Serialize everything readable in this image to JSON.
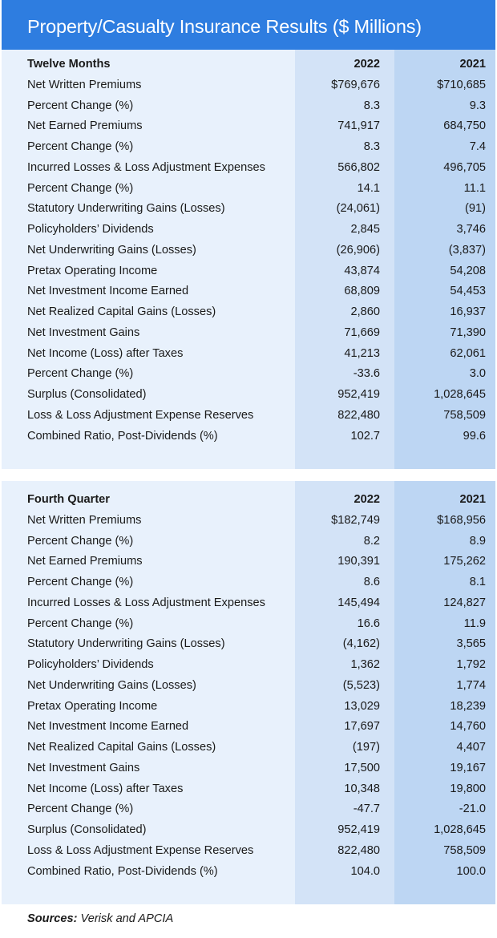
{
  "title": "Property/Casualty Insurance Results ($ Millions)",
  "tables": [
    {
      "heading": "Twelve Months",
      "col1": "2022",
      "col2": "2021",
      "rows": [
        [
          "Net Written Premiums",
          "$769,676",
          "$710,685"
        ],
        [
          "Percent Change (%)",
          "8.3",
          "9.3"
        ],
        [
          "Net Earned Premiums",
          "741,917",
          "684,750"
        ],
        [
          "Percent Change (%)",
          "8.3",
          "7.4"
        ],
        [
          "Incurred Losses & Loss Adjustment Expenses",
          "566,802",
          "496,705"
        ],
        [
          "Percent Change (%)",
          "14.1",
          "11.1"
        ],
        [
          "Statutory Underwriting Gains (Losses)",
          "(24,061)",
          "(91)"
        ],
        [
          "Policyholders’ Dividends",
          "2,845",
          "3,746"
        ],
        [
          "Net Underwriting Gains (Losses)",
          "(26,906)",
          "(3,837)"
        ],
        [
          "Pretax Operating Income",
          "43,874",
          "54,208"
        ],
        [
          "Net Investment Income Earned",
          "68,809",
          "54,453"
        ],
        [
          "Net Realized Capital Gains (Losses)",
          "2,860",
          "16,937"
        ],
        [
          "Net Investment Gains",
          "71,669",
          "71,390"
        ],
        [
          "Net Income (Loss) after Taxes",
          "41,213",
          "62,061"
        ],
        [
          "Percent Change (%)",
          "-33.6",
          "3.0"
        ],
        [
          "Surplus (Consolidated)",
          "952,419",
          "1,028,645"
        ],
        [
          "Loss & Loss Adjustment Expense Reserves",
          "822,480",
          "758,509"
        ],
        [
          "Combined Ratio, Post-Dividends (%)",
          "102.7",
          "99.6"
        ]
      ]
    },
    {
      "heading": "Fourth Quarter",
      "col1": "2022",
      "col2": "2021",
      "rows": [
        [
          "Net Written Premiums",
          "$182,749",
          "$168,956"
        ],
        [
          "Percent Change (%)",
          "8.2",
          "8.9"
        ],
        [
          "Net Earned Premiums",
          "190,391",
          "175,262"
        ],
        [
          "Percent Change (%)",
          "8.6",
          "8.1"
        ],
        [
          "Incurred Losses & Loss Adjustment Expenses",
          "145,494",
          "124,827"
        ],
        [
          "Percent Change (%)",
          "16.6",
          "11.9"
        ],
        [
          "Statutory Underwriting Gains (Losses)",
          "(4,162)",
          "3,565"
        ],
        [
          "Policyholders’ Dividends",
          "1,362",
          "1,792"
        ],
        [
          "Net Underwriting Gains (Losses)",
          "(5,523)",
          "1,774"
        ],
        [
          "Pretax Operating Income",
          "13,029",
          "18,239"
        ],
        [
          "Net Investment Income Earned",
          "17,697",
          "14,760"
        ],
        [
          "Net Realized Capital Gains (Losses)",
          "(197)",
          "4,407"
        ],
        [
          "Net Investment Gains",
          "17,500",
          "19,167"
        ],
        [
          "Net Income (Loss) after Taxes",
          "10,348",
          "19,800"
        ],
        [
          "Percent Change (%)",
          "-47.7",
          "-21.0"
        ],
        [
          "Surplus (Consolidated)",
          "952,419",
          "1,028,645"
        ],
        [
          "Loss & Loss Adjustment Expense Reserves",
          "822,480",
          "758,509"
        ],
        [
          "Combined Ratio, Post-Dividends (%)",
          "104.0",
          "100.0"
        ]
      ]
    }
  ],
  "sources": {
    "label": "Sources:",
    "text": " Verisk and APCIA"
  },
  "colors": {
    "title_bg": "#2e7de0",
    "panel": "#e8f1fc",
    "col_2022": "#d3e3f7",
    "col_2021": "#bdd6f3"
  }
}
